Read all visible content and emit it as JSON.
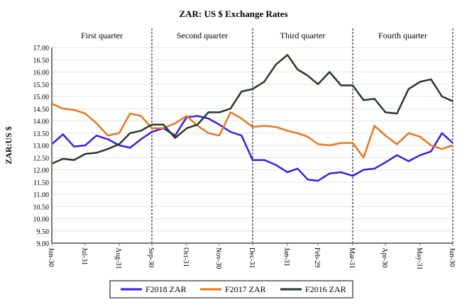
{
  "chart_data": {
    "type": "line",
    "title": "ZAR: US $ Exchange Rates",
    "ylabel": "ZAR:US $",
    "xlabel": "",
    "ylim": [
      9,
      17
    ],
    "yticks": [
      "9.00",
      "9.50",
      "10.00",
      "10.50",
      "11.00",
      "11.50",
      "12.00",
      "12.50",
      "13.00",
      "13.50",
      "14.00",
      "14.50",
      "15.00",
      "15.50",
      "16.00",
      "16.50",
      "17.00"
    ],
    "xticks": [
      "Jun-30",
      "Jul-31",
      "Aug-31",
      "Sep-30",
      "Oct-31",
      "Nov-30",
      "Dec-31",
      "Jan-31",
      "Feb-29",
      "Mar-31",
      "Apr-30",
      "May-31",
      "Jun-30"
    ],
    "quarters": [
      "First quarter",
      "Second quarter",
      "Third quarter",
      "Fourth quarter"
    ],
    "quarter_dividers": [
      "Sep-30",
      "Dec-31",
      "Mar-31",
      "Jun-30"
    ],
    "grid": "horizontal",
    "legend_position": "bottom",
    "x": [
      "Jun-30",
      "Jul-10",
      "Jul-20",
      "Jul-31",
      "Aug-10",
      "Aug-20",
      "Aug-31",
      "Sep-10",
      "Sep-20",
      "Sep-30",
      "Oct-10",
      "Oct-20",
      "Oct-31",
      "Nov-10",
      "Nov-20",
      "Nov-30",
      "Dec-10",
      "Dec-20",
      "Dec-31",
      "Jan-10",
      "Jan-20",
      "Jan-31",
      "Feb-10",
      "Feb-20",
      "Feb-29",
      "Mar-10",
      "Mar-20",
      "Mar-31",
      "Apr-10",
      "Apr-20",
      "Apr-30",
      "May-10",
      "May-20",
      "May-31",
      "Jun-10",
      "Jun-20",
      "Jun-30"
    ],
    "series": [
      {
        "name": "F2018 ZAR",
        "color": "#3a1fe0",
        "values": [
          13.05,
          13.45,
          12.95,
          13.0,
          13.4,
          13.25,
          13.0,
          12.9,
          13.25,
          13.55,
          13.7,
          13.4,
          14.15,
          14.2,
          14.1,
          13.85,
          13.55,
          13.4,
          12.4,
          12.4,
          12.2,
          11.9,
          12.05,
          11.6,
          11.55,
          11.85,
          11.9,
          11.75,
          12.0,
          12.05,
          12.3,
          12.6,
          12.35,
          12.6,
          12.75,
          13.5,
          13.1
        ]
      },
      {
        "name": "F2017 ZAR",
        "color": "#e8761e",
        "values": [
          14.7,
          14.5,
          14.45,
          14.3,
          13.9,
          13.4,
          13.5,
          14.3,
          14.2,
          13.7,
          13.7,
          13.9,
          14.2,
          13.8,
          13.5,
          13.4,
          14.35,
          14.1,
          13.75,
          13.8,
          13.75,
          13.6,
          13.5,
          13.35,
          13.05,
          13.0,
          13.1,
          13.1,
          12.5,
          13.8,
          13.4,
          13.05,
          13.5,
          13.35,
          13.0,
          12.85,
          13.0
        ]
      },
      {
        "name": "F2016 ZAR",
        "color": "#263a26",
        "values": [
          12.25,
          12.45,
          12.4,
          12.65,
          12.7,
          12.85,
          13.05,
          13.5,
          13.6,
          13.85,
          13.85,
          13.3,
          13.7,
          13.85,
          14.35,
          14.35,
          14.5,
          15.2,
          15.3,
          15.6,
          16.3,
          16.7,
          16.1,
          15.85,
          15.5,
          16.0,
          15.45,
          15.45,
          14.85,
          14.9,
          14.35,
          14.3,
          15.3,
          15.6,
          15.7,
          15.0,
          14.8
        ]
      }
    ]
  }
}
